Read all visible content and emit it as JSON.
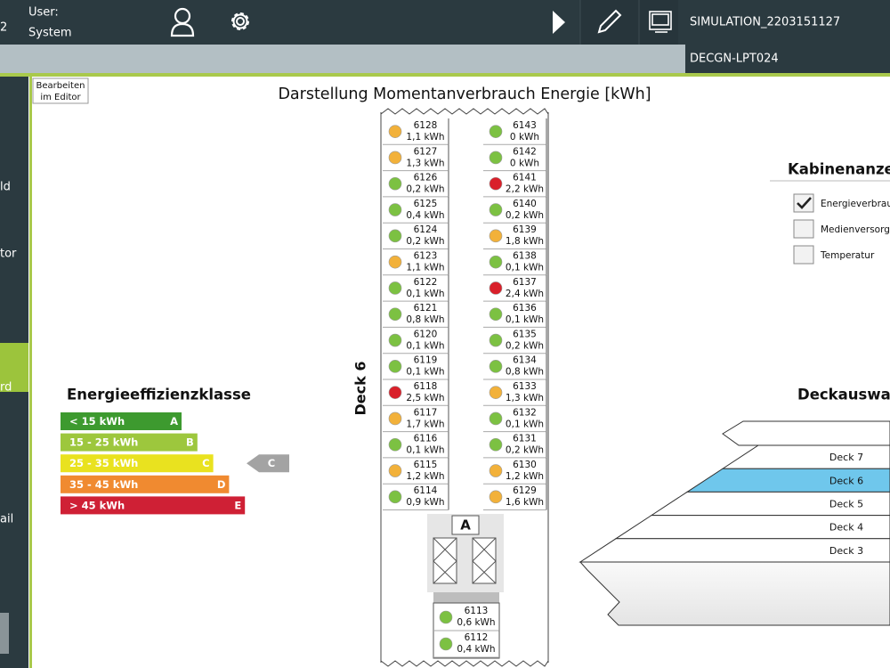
{
  "header": {
    "session_fragment": "2",
    "user_label": "User:",
    "user_name": "System",
    "simulation": "SIMULATION_2203151127",
    "device": "DECGN-LPT024"
  },
  "sidebar": [
    "ld",
    "tor",
    "rd",
    "ail"
  ],
  "editor_button": [
    "Bearbeiten",
    "im Editor"
  ],
  "title": "Darstellung Momentanverbrauch Energie [kWh]",
  "deck_label": "Deck 6",
  "elevator_label": "A",
  "cabins": {
    "left": [
      {
        "id": "6128",
        "consumption": "1,1 kWh",
        "color": "#f2b13a"
      },
      {
        "id": "6127",
        "consumption": "1,3 kWh",
        "color": "#f2b13a"
      },
      {
        "id": "6126",
        "consumption": "0,2 kWh",
        "color": "#7cc142"
      },
      {
        "id": "6125",
        "consumption": "0,4 kWh",
        "color": "#7cc142"
      },
      {
        "id": "6124",
        "consumption": "0,2 kWh",
        "color": "#7cc142"
      },
      {
        "id": "6123",
        "consumption": "1,1 kWh",
        "color": "#f2b13a"
      },
      {
        "id": "6122",
        "consumption": "0,1 kWh",
        "color": "#7cc142"
      },
      {
        "id": "6121",
        "consumption": "0,8 kWh",
        "color": "#7cc142"
      },
      {
        "id": "6120",
        "consumption": "0,1 kWh",
        "color": "#7cc142"
      },
      {
        "id": "6119",
        "consumption": "0,1 kWh",
        "color": "#7cc142"
      },
      {
        "id": "6118",
        "consumption": "2,5 kWh",
        "color": "#d9202a"
      },
      {
        "id": "6117",
        "consumption": "1,7 kWh",
        "color": "#f2b13a"
      },
      {
        "id": "6116",
        "consumption": "0,1 kWh",
        "color": "#7cc142"
      },
      {
        "id": "6115",
        "consumption": "1,2 kWh",
        "color": "#f2b13a"
      },
      {
        "id": "6114",
        "consumption": "0,9 kWh",
        "color": "#7cc142"
      }
    ],
    "right": [
      {
        "id": "6143",
        "consumption": "0 kWh",
        "color": "#7cc142"
      },
      {
        "id": "6142",
        "consumption": "0 kWh",
        "color": "#7cc142"
      },
      {
        "id": "6141",
        "consumption": "2,2 kWh",
        "color": "#d9202a"
      },
      {
        "id": "6140",
        "consumption": "0,2 kWh",
        "color": "#7cc142"
      },
      {
        "id": "6139",
        "consumption": "1,8 kWh",
        "color": "#f2b13a"
      },
      {
        "id": "6138",
        "consumption": "0,1 kWh",
        "color": "#7cc142"
      },
      {
        "id": "6137",
        "consumption": "2,4 kWh",
        "color": "#d9202a"
      },
      {
        "id": "6136",
        "consumption": "0,1 kWh",
        "color": "#7cc142"
      },
      {
        "id": "6135",
        "consumption": "0,2 kWh",
        "color": "#7cc142"
      },
      {
        "id": "6134",
        "consumption": "0,8 kWh",
        "color": "#7cc142"
      },
      {
        "id": "6133",
        "consumption": "1,3 kWh",
        "color": "#f2b13a"
      },
      {
        "id": "6132",
        "consumption": "0,1 kWh",
        "color": "#7cc142"
      },
      {
        "id": "6131",
        "consumption": "0,2 kWh",
        "color": "#7cc142"
      },
      {
        "id": "6130",
        "consumption": "1,2 kWh",
        "color": "#f2b13a"
      },
      {
        "id": "6129",
        "consumption": "1,6 kWh",
        "color": "#f2b13a"
      }
    ],
    "bottom": [
      {
        "id": "6113",
        "consumption": "0,6 kWh",
        "color": "#7cc142"
      },
      {
        "id": "6112",
        "consumption": "0,4 kWh",
        "color": "#7cc142"
      }
    ]
  },
  "efficiency": {
    "title": "Energieeffizienzklasse",
    "current": "C",
    "classes": [
      {
        "range": "< 15 kWh",
        "class": "A",
        "color": "#3d9a2f"
      },
      {
        "range": "15 - 25 kWh",
        "class": "B",
        "color": "#9dc73d"
      },
      {
        "range": "25 - 35 kWh",
        "class": "C",
        "color": "#e9e21f"
      },
      {
        "range": "35 - 45 kWh",
        "class": "D",
        "color": "#f08a30"
      },
      {
        "range": "> 45 kWh",
        "class": "E",
        "color": "#cf2035"
      }
    ]
  },
  "cabin_display": {
    "title": "Kabinenanzei",
    "options": [
      {
        "label": "Energieverbrauc",
        "checked": true
      },
      {
        "label": "Medienversorgu",
        "checked": false
      },
      {
        "label": "Temperatur",
        "checked": false
      }
    ]
  },
  "deck_selection": {
    "title": "Deckauswah",
    "decks": [
      {
        "label": "Deck 7",
        "selected": false
      },
      {
        "label": "Deck 6",
        "selected": true
      },
      {
        "label": "Deck 5",
        "selected": false
      },
      {
        "label": "Deck 4",
        "selected": false
      },
      {
        "label": "Deck 3",
        "selected": false
      }
    ]
  }
}
